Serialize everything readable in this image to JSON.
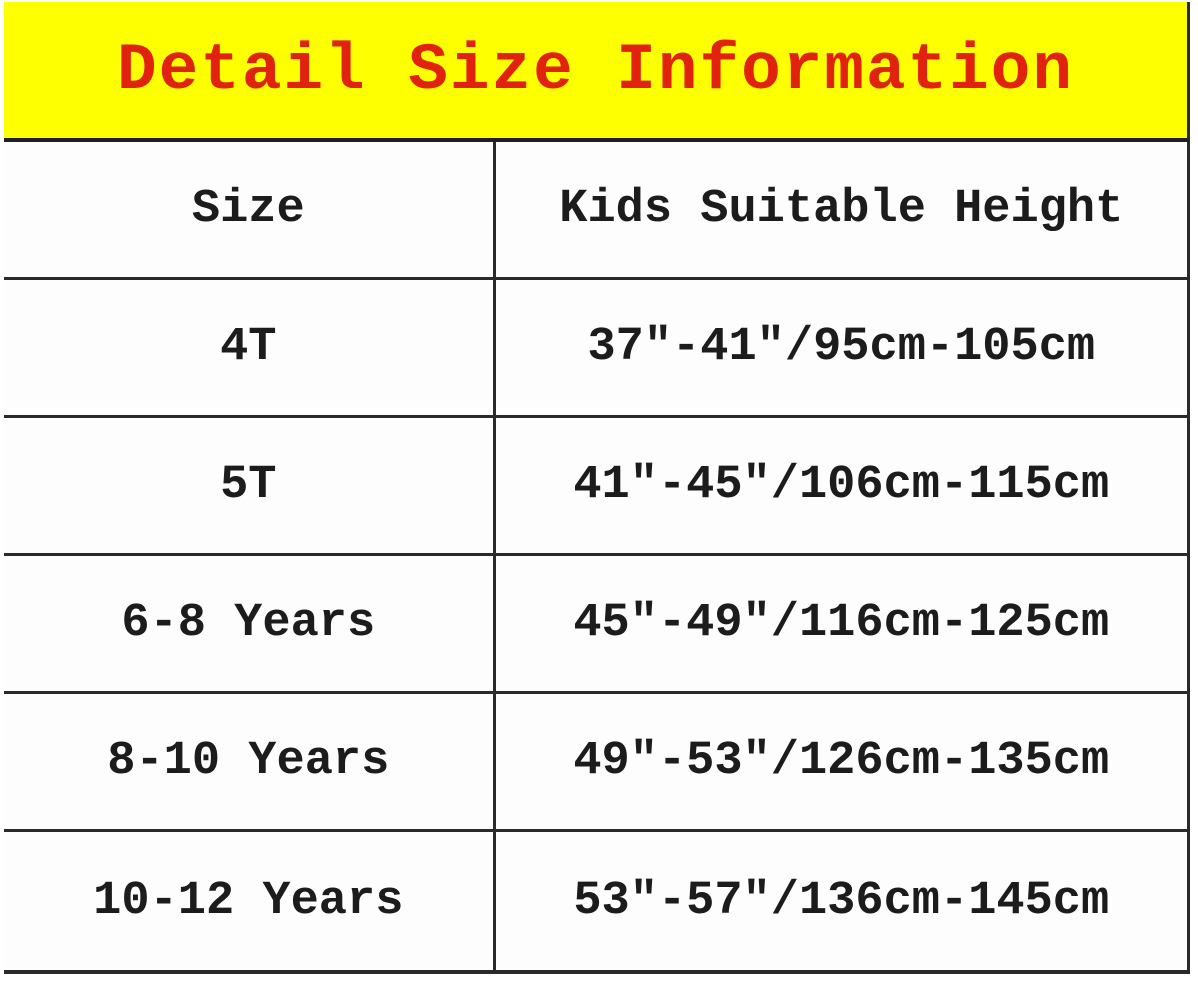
{
  "banner": {
    "title": "Detail Size Information",
    "bg_color": "#feff00",
    "text_color": "#e0220f"
  },
  "table": {
    "columns": {
      "size_label": "Size",
      "height_label": "Kids Suitable Height"
    },
    "rows": [
      {
        "size": "4T",
        "height": "37″-41″/95cm-105cm"
      },
      {
        "size": "5T",
        "height": "41″-45″/106cm-115cm"
      },
      {
        "size": "6-8 Years",
        "height": "45″-49″/116cm-125cm"
      },
      {
        "size": "8-10 Years",
        "height": "49″-53″/126cm-135cm"
      },
      {
        "size": "10-12 Years",
        "height": "53″-57″/136cm-145cm"
      }
    ],
    "border_color": "#2a2a2a",
    "text_color": "#1c1c1c"
  }
}
